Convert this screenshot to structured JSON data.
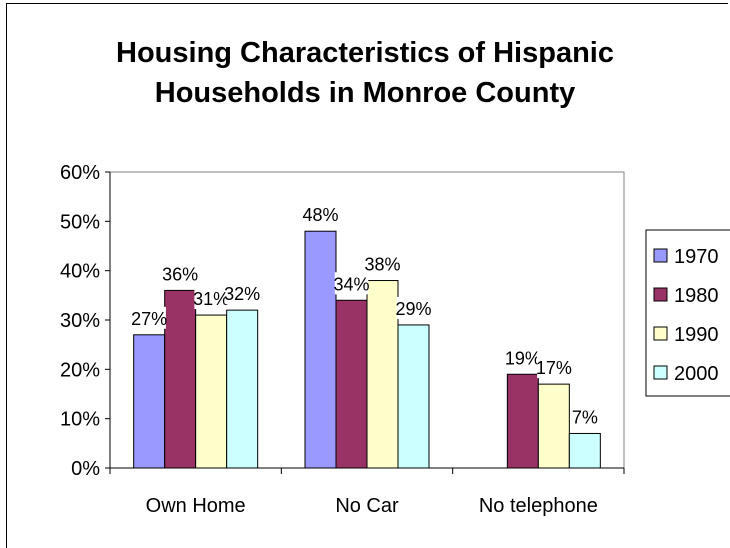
{
  "chart_data": {
    "type": "bar",
    "title_line1": "Housing Characteristics of Hispanic",
    "title_line2": "Households in Monroe County",
    "categories": [
      "Own Home",
      "No Car",
      "No telephone"
    ],
    "series": [
      {
        "name": "1970",
        "values": [
          27,
          48,
          null
        ],
        "labels": [
          "27%",
          "48%",
          ""
        ],
        "color": "#9999FF"
      },
      {
        "name": "1980",
        "values": [
          36,
          34,
          19
        ],
        "labels": [
          "36%",
          "34%",
          "19%"
        ],
        "color": "#993366"
      },
      {
        "name": "1990",
        "values": [
          31,
          38,
          17
        ],
        "labels": [
          "31%",
          "38%",
          "17%"
        ],
        "color": "#FFFFCC"
      },
      {
        "name": "2000",
        "values": [
          32,
          29,
          7
        ],
        "labels": [
          "32%",
          "29%",
          "7%"
        ],
        "color": "#CCFFFF"
      }
    ],
    "yticks": [
      "0%",
      "10%",
      "20%",
      "30%",
      "40%",
      "50%",
      "60%"
    ],
    "ylim": [
      0,
      60
    ],
    "grid": false,
    "legend": "right"
  }
}
